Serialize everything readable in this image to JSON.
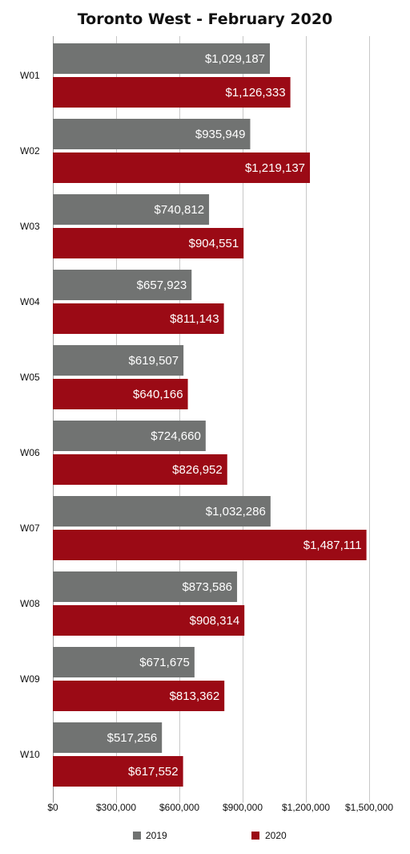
{
  "chart_data": {
    "type": "bar",
    "orientation": "horizontal",
    "title": "Toronto West - February 2020",
    "xlabel": "",
    "ylabel": "",
    "categories": [
      "W01",
      "W02",
      "W03",
      "W04",
      "W05",
      "W06",
      "W07",
      "W08",
      "W09",
      "W10"
    ],
    "series": [
      {
        "name": "2019",
        "color": "#717372",
        "values": [
          1029187,
          935949,
          740812,
          657923,
          619507,
          724660,
          1032286,
          873586,
          671675,
          517256
        ],
        "labels": [
          "$1,029,187",
          "$935,949",
          "$740,812",
          "$657,923",
          "$619,507",
          "$724,660",
          "$1,032,286",
          "$873,586",
          "$671,675",
          "$517,256"
        ]
      },
      {
        "name": "2020",
        "color": "#9b0a15",
        "values": [
          1126333,
          1219137,
          904551,
          811143,
          640166,
          826952,
          1487111,
          908314,
          813362,
          617552
        ],
        "labels": [
          "$1,126,333",
          "$1,219,137",
          "$904,551",
          "$811,143",
          "$640,166",
          "$826,952",
          "$1,487,111",
          "$908,314",
          "$813,362",
          "$617,552"
        ]
      }
    ],
    "xlim": [
      0,
      1500000
    ],
    "xticks": [
      0,
      300000,
      600000,
      900000,
      1200000,
      1500000
    ],
    "xtick_labels": [
      "$0",
      "$300,000",
      "$600,000",
      "$900,000",
      "$1,200,000",
      "$1,500,000"
    ],
    "grid": true,
    "legend_position": "bottom",
    "gridline_color": "#c8c8c8"
  }
}
